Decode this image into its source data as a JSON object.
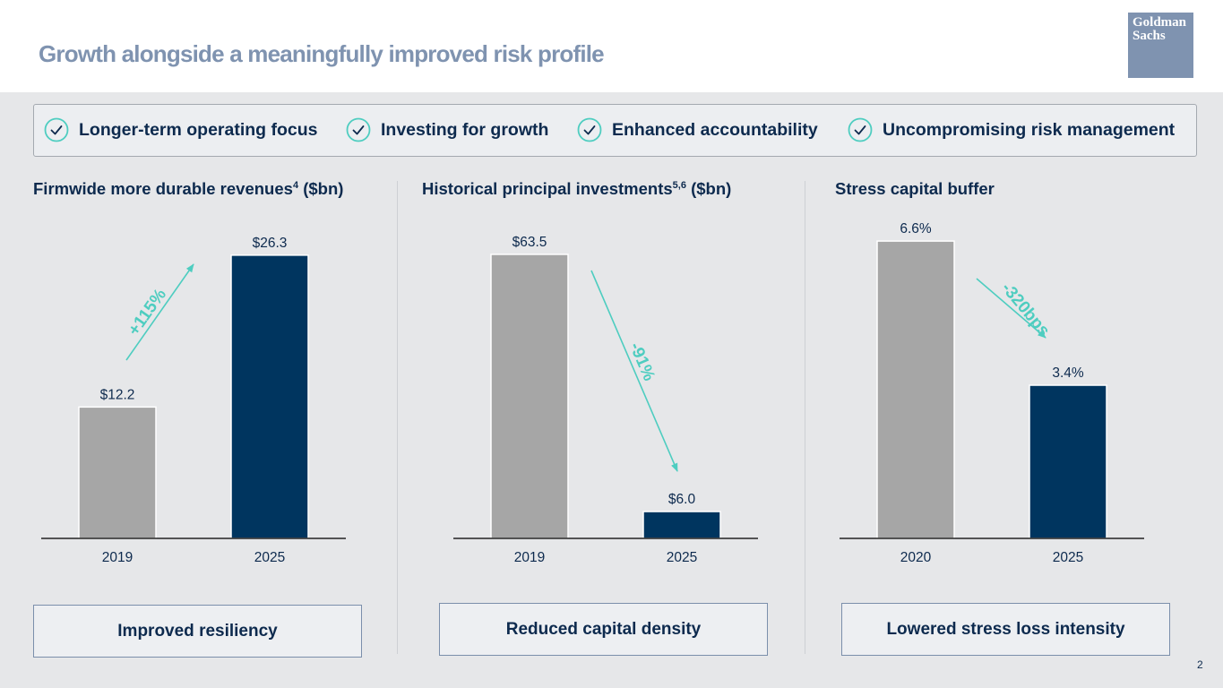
{
  "header": {
    "title": "Growth alongside a meaningfully improved risk profile",
    "logo": {
      "line1": "Goldman",
      "line2": "Sachs"
    }
  },
  "pillars": [
    {
      "label": "Longer-term operating focus"
    },
    {
      "label": "Investing for growth"
    },
    {
      "label": "Enhanced accountability"
    },
    {
      "label": "Uncompromising risk management"
    }
  ],
  "sections": [
    {
      "title": "Firmwide more durable revenues",
      "sup": "4",
      "unit": " ($bn)",
      "takeaway": "Improved resiliency"
    },
    {
      "title": "Historical principal investments",
      "sup": "5,6",
      "unit": " ($bn)",
      "takeaway": "Reduced capital density"
    },
    {
      "title": "Stress capital buffer",
      "sup": "",
      "unit": "",
      "takeaway": "Lowered stress loss intensity"
    }
  ],
  "colors": {
    "bar_prior": "#a6a6a6",
    "bar_current": "#00355f",
    "accent": "#4ecdc0",
    "text_dark": "#0d2a4e"
  },
  "chart_data": [
    {
      "type": "bar",
      "title": "Firmwide more durable revenues ($bn)",
      "categories": [
        "2019",
        "2025"
      ],
      "values": [
        12.2,
        26.3
      ],
      "labels": [
        "$12.2",
        "$26.3"
      ],
      "change": "+115%",
      "ylim": [
        0,
        29.2
      ]
    },
    {
      "type": "bar",
      "title": "Historical principal investments ($bn)",
      "categories": [
        "2019",
        "2025"
      ],
      "values": [
        63.5,
        6.0
      ],
      "labels": [
        "$63.5",
        "$6.0"
      ],
      "change": "-91%",
      "ylim": [
        0,
        70.3
      ]
    },
    {
      "type": "bar",
      "title": "Stress capital buffer",
      "categories": [
        "2020",
        "2025"
      ],
      "values": [
        6.6,
        3.4
      ],
      "labels": [
        "6.6%",
        "3.4%"
      ],
      "change": "-320bps",
      "ylim": [
        0,
        6.98
      ]
    }
  ],
  "page_number": "2"
}
